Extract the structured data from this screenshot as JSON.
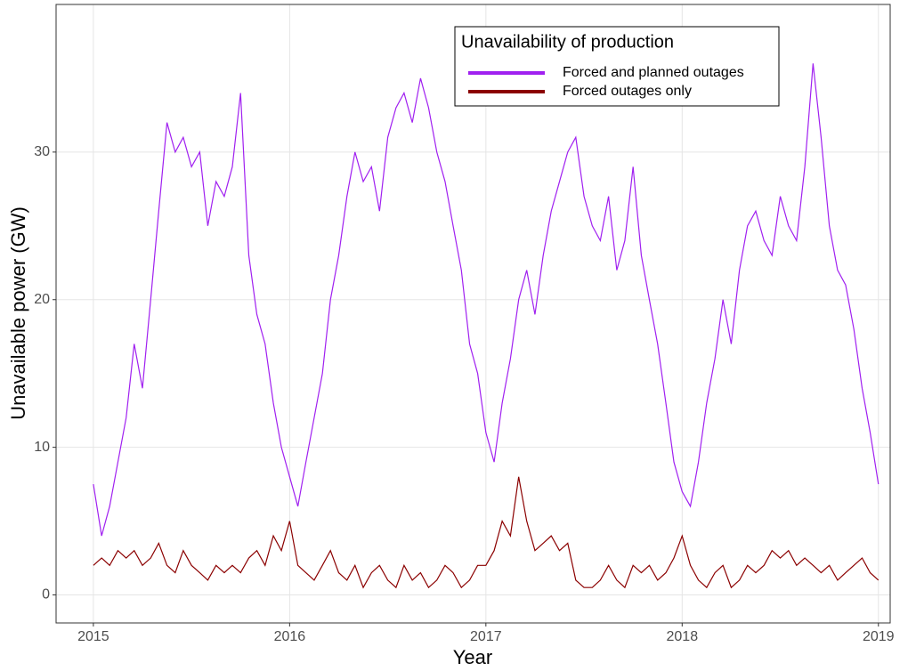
{
  "chart_data": {
    "type": "line",
    "x_label": "Year",
    "y_label": "Unavailable power (GW)",
    "legend_title": "Unavailability of production",
    "legend_position": "top-right",
    "grid": true,
    "xlim": [
      2014.81,
      2019.06
    ],
    "ylim": [
      -1.9,
      40
    ],
    "xticks": [
      2015,
      2016,
      2017,
      2018,
      2019
    ],
    "yticks": [
      0,
      10,
      20,
      30
    ],
    "x": [
      2015,
      2015.042,
      2015.083,
      2015.125,
      2015.167,
      2015.208,
      2015.25,
      2015.292,
      2015.333,
      2015.375,
      2015.417,
      2015.458,
      2015.5,
      2015.542,
      2015.583,
      2015.625,
      2015.667,
      2015.708,
      2015.75,
      2015.792,
      2015.833,
      2015.875,
      2015.917,
      2015.958,
      2016,
      2016.042,
      2016.083,
      2016.125,
      2016.167,
      2016.208,
      2016.25,
      2016.292,
      2016.333,
      2016.375,
      2016.417,
      2016.458,
      2016.5,
      2016.542,
      2016.583,
      2016.625,
      2016.667,
      2016.708,
      2016.75,
      2016.792,
      2016.833,
      2016.875,
      2016.917,
      2016.958,
      2017,
      2017.042,
      2017.083,
      2017.125,
      2017.167,
      2017.208,
      2017.25,
      2017.292,
      2017.333,
      2017.375,
      2017.417,
      2017.458,
      2017.5,
      2017.542,
      2017.583,
      2017.625,
      2017.667,
      2017.708,
      2017.75,
      2017.792,
      2017.833,
      2017.875,
      2017.917,
      2017.958,
      2018,
      2018.042,
      2018.083,
      2018.125,
      2018.167,
      2018.208,
      2018.25,
      2018.292,
      2018.333,
      2018.375,
      2018.417,
      2018.458,
      2018.5,
      2018.542,
      2018.583,
      2018.625,
      2018.667,
      2018.708,
      2018.75,
      2018.792,
      2018.833,
      2018.875,
      2018.917,
      2018.958,
      2019
    ],
    "series": [
      {
        "name": "Forced and planned outages",
        "color": "#a020f0",
        "values": [
          7.5,
          4,
          6,
          9,
          12,
          17,
          14,
          20,
          26,
          32,
          30,
          31,
          29,
          30,
          25,
          28,
          27,
          29,
          34,
          23,
          19,
          17,
          13,
          10,
          8,
          6,
          9,
          12,
          15,
          20,
          23,
          27,
          30,
          28,
          29,
          26,
          31,
          33,
          34,
          32,
          35,
          33,
          30,
          28,
          25,
          22,
          17,
          15,
          11,
          9,
          13,
          16,
          20,
          22,
          19,
          23,
          26,
          28,
          30,
          31,
          27,
          25,
          24,
          27,
          22,
          24,
          29,
          23,
          20,
          17,
          13,
          9,
          7,
          6,
          9,
          13,
          16,
          20,
          17,
          22,
          25,
          26,
          24,
          23,
          27,
          25,
          24,
          29,
          36,
          31,
          25,
          22,
          21,
          18,
          14,
          11,
          7.5
        ]
      },
      {
        "name": "Forced outages only",
        "color": "#8b0000",
        "values": [
          2,
          2.5,
          2,
          3,
          2.5,
          3,
          2,
          2.5,
          3.5,
          2,
          1.5,
          3,
          2,
          1.5,
          1,
          2,
          1.5,
          2,
          1.5,
          2.5,
          3,
          2,
          4,
          3,
          5,
          2,
          1.5,
          1,
          2,
          3,
          1.5,
          1,
          2,
          0.5,
          1.5,
          2,
          1,
          0.5,
          2,
          1,
          1.5,
          0.5,
          1,
          2,
          1.5,
          0.5,
          1,
          2,
          2,
          3,
          5,
          4,
          8,
          5,
          3,
          3.5,
          4,
          3,
          3.5,
          1,
          0.5,
          0.5,
          1,
          2,
          1,
          0.5,
          2,
          1.5,
          2,
          1,
          1.5,
          2.5,
          4,
          2,
          1,
          0.5,
          1.5,
          2,
          0.5,
          1,
          2,
          1.5,
          2,
          3,
          2.5,
          3,
          2,
          2.5,
          2,
          1.5,
          2,
          1,
          1.5,
          2,
          2.5,
          1.5,
          1
        ]
      }
    ]
  }
}
